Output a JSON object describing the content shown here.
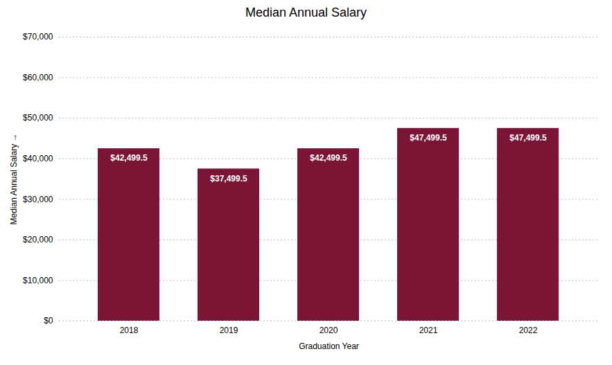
{
  "chart_data": {
    "type": "bar",
    "title": "Median Annual Salary",
    "xlabel": "Graduation Year",
    "ylabel": "Median Annual Salary",
    "categories": [
      "2018",
      "2019",
      "2020",
      "2021",
      "2022"
    ],
    "values": [
      42499.5,
      37499.5,
      42499.5,
      47499.5,
      47499.5
    ],
    "value_labels": [
      "$42,499.5",
      "$37,499.5",
      "$42,499.5",
      "$47,499.5",
      "$47,499.5"
    ],
    "data_labels": true,
    "color": "#7B1535",
    "ylim": [
      0,
      70000
    ],
    "yticks": [
      {
        "value": 0,
        "label": "$0"
      },
      {
        "value": 10000,
        "label": "$10,000"
      },
      {
        "value": 20000,
        "label": "$20,000"
      },
      {
        "value": 30000,
        "label": "$30,000"
      },
      {
        "value": 40000,
        "label": "$40,000"
      },
      {
        "value": 50000,
        "label": "$50,000"
      },
      {
        "value": 60000,
        "label": "$60,000"
      },
      {
        "value": 70000,
        "label": "$70,000"
      }
    ],
    "grid": true
  }
}
